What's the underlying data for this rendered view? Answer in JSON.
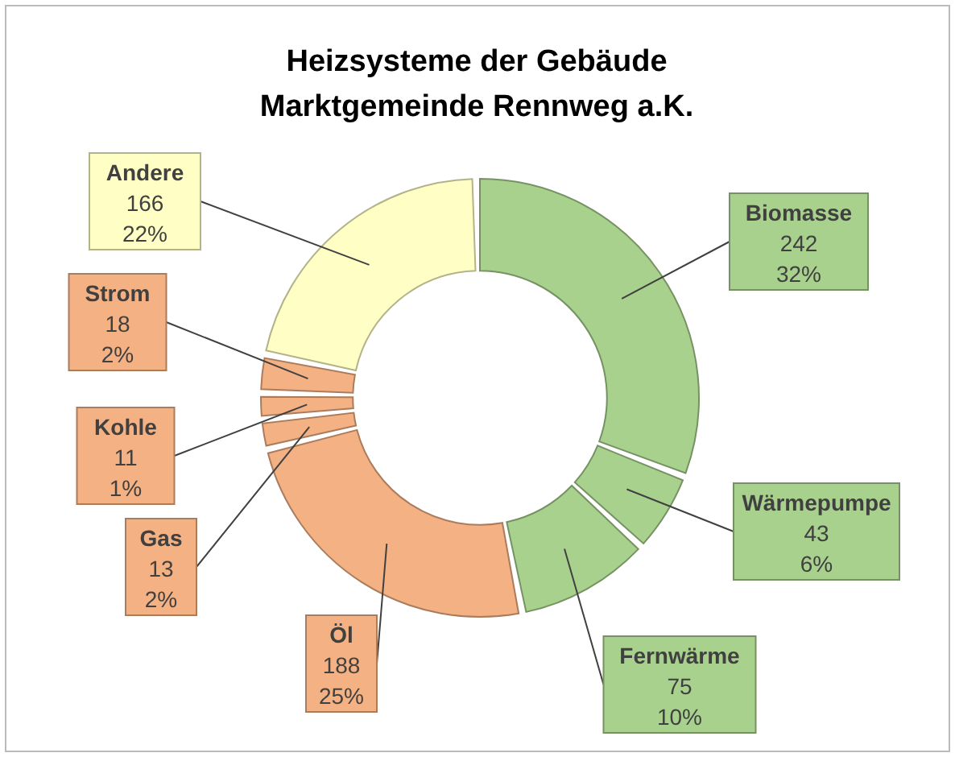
{
  "chart_data": {
    "type": "donut",
    "title": "Heizsysteme der Gebäude\nMarktgemeinde Rennweg a.K.",
    "categories": [
      "Biomasse",
      "Wärmepumpe",
      "Fernwärme",
      "Öl",
      "Gas",
      "Kohle",
      "Strom",
      "Andere"
    ],
    "values": [
      242,
      43,
      75,
      188,
      13,
      11,
      18,
      166
    ],
    "value_labels": [
      "242\n32%",
      "43\n6%",
      "75\n10%",
      "188\n25%",
      "13\n2%",
      "11\n1%",
      "18\n2%",
      "166\n22%"
    ],
    "colors": [
      "#a9d18e",
      "#a9d18e",
      "#a9d18e",
      "#f4b183",
      "#f4b183",
      "#f4b183",
      "#f4b183",
      "#ffffc5"
    ]
  }
}
